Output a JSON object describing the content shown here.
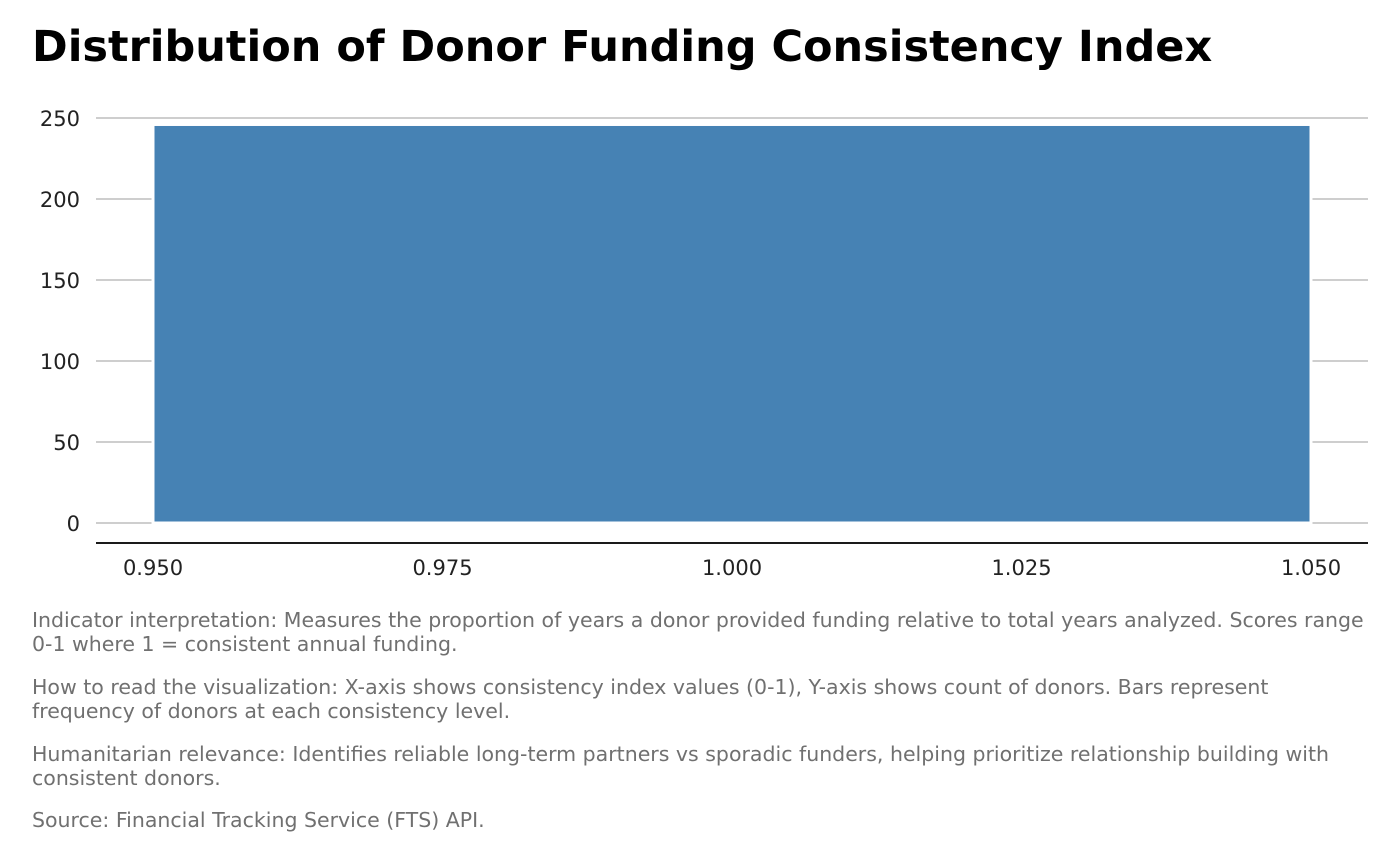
{
  "title": "Distribution of Donor Funding Consistency Index",
  "colors": {
    "bar": "#4682b4",
    "grid": "#bebebe",
    "axis_line": "#1a1a1a",
    "tick_text": "#222222",
    "caption_text": "#707070"
  },
  "chart_data": {
    "type": "bar",
    "title": "Distribution of Donor Funding Consistency Index",
    "xlabel": "",
    "ylabel": "",
    "x_ticks": [
      "0.950",
      "0.975",
      "1.000",
      "1.025",
      "1.050"
    ],
    "y_ticks": [
      "0",
      "50",
      "100",
      "150",
      "200",
      "250"
    ],
    "xlim": [
      0.95,
      1.05
    ],
    "ylim": [
      0,
      250
    ],
    "bins": [
      {
        "x_start": 0.95,
        "x_end": 1.05,
        "count": 246
      }
    ],
    "grid": "horizontal"
  },
  "captions": [
    "Indicator interpretation: Measures the proportion of years a donor provided funding relative to total years analyzed. Scores range 0-1 where 1 = consistent annual funding.",
    "How to read the visualization: X-axis shows consistency index values (0-1), Y-axis shows count of donors. Bars represent frequency of donors at each consistency level.",
    "Humanitarian relevance: Identifies reliable long-term partners vs sporadic funders, helping prioritize relationship building with consistent donors.",
    "Source: Financial Tracking Service (FTS) API."
  ]
}
